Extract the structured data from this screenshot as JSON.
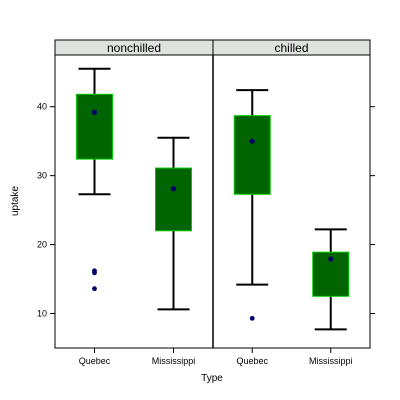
{
  "chart_data": {
    "type": "box",
    "xlabel": "Type",
    "ylabel": "uptake",
    "ylim": [
      5,
      47.5
    ],
    "yticks": [
      10,
      20,
      30,
      40
    ],
    "categories": [
      "Quebec",
      "Mississippi"
    ],
    "panels": [
      {
        "name": "nonchilled",
        "boxes": [
          {
            "category": "Quebec",
            "min": 27.3,
            "q1": 32.4,
            "median": 39.2,
            "q3": 41.8,
            "max": 45.5,
            "outliers": [
              16.2,
              15.9,
              13.6
            ]
          },
          {
            "category": "Mississippi",
            "min": 10.6,
            "q1": 22.0,
            "median": 28.1,
            "q3": 31.1,
            "max": 35.5,
            "outliers": []
          }
        ]
      },
      {
        "name": "chilled",
        "boxes": [
          {
            "category": "Quebec",
            "min": 14.2,
            "q1": 27.3,
            "median": 35.0,
            "q3": 38.7,
            "max": 42.4,
            "outliers": [
              9.3
            ]
          },
          {
            "category": "Mississippi",
            "min": 7.7,
            "q1": 12.5,
            "median": 17.9,
            "q3": 18.9,
            "max": 22.2,
            "outliers": []
          }
        ]
      }
    ],
    "colors": {
      "box_fill": "#006400",
      "box_border": "#00c800",
      "whisker": "#000000",
      "point": "#000066",
      "strip_bg": "#dfe3df",
      "frame": "#000000"
    }
  }
}
